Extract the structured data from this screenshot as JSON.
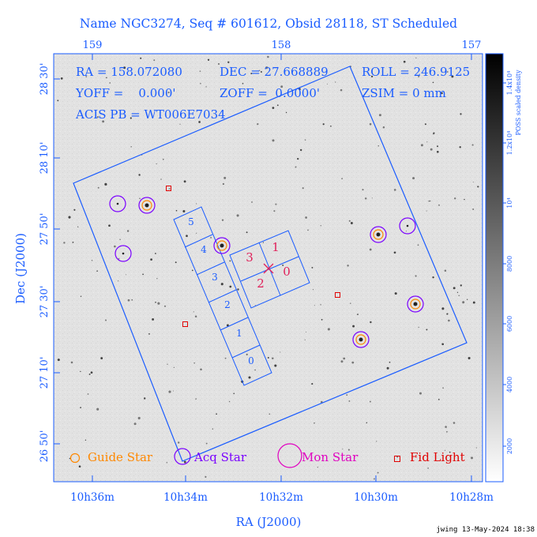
{
  "title": "Name NGC3274, Seq # 601612, Obsid 28118, ST Scheduled",
  "info": {
    "ra": "RA = 158.072080",
    "dec": "DEC = 27.668889",
    "roll": "ROLL = 246.9125",
    "yoff": "YOFF =    0.000'",
    "zoff": "ZOFF =  0.0000'",
    "zsim": "ZSIM = 0 mm",
    "acis": "ACIS PB = WT006E7034"
  },
  "top_axis_labels": [
    "159",
    "158",
    "157"
  ],
  "bottom_axis_labels": [
    "10h36m",
    "10h34m",
    "10h32m",
    "10h30m",
    "10h28m"
  ],
  "left_axis_labels": [
    "28 30'",
    "28 10'",
    "27 50'",
    "27 30'",
    "27 10'",
    "26 50'"
  ],
  "x_axis_title": "RA (J2000)",
  "y_axis_title": "Dec (J2000)",
  "colorbar": {
    "title": "POSS scaled density",
    "ticks": [
      "1.4x10⁴",
      "1.2x10⁴",
      "10⁴",
      "8000",
      "6000",
      "4000",
      "2000"
    ]
  },
  "ccd_labels": [
    "0",
    "1",
    "2",
    "3",
    "4",
    "5"
  ],
  "ccd_s_labels": [
    "1",
    "0",
    "3",
    "2"
  ],
  "legend": {
    "guide": "Guide Star",
    "acq": "Acq Star",
    "mon": "Mon Star",
    "fid": "Fid Light"
  },
  "footer": "jwing 13-May-2024 18:38",
  "colors": {
    "blue": "#1a5cff",
    "guide": "#ff8800",
    "acq": "#7a00ff",
    "mon": "#e000c0",
    "fid": "#e00000",
    "ccd_label_red": "#e0205a"
  }
}
